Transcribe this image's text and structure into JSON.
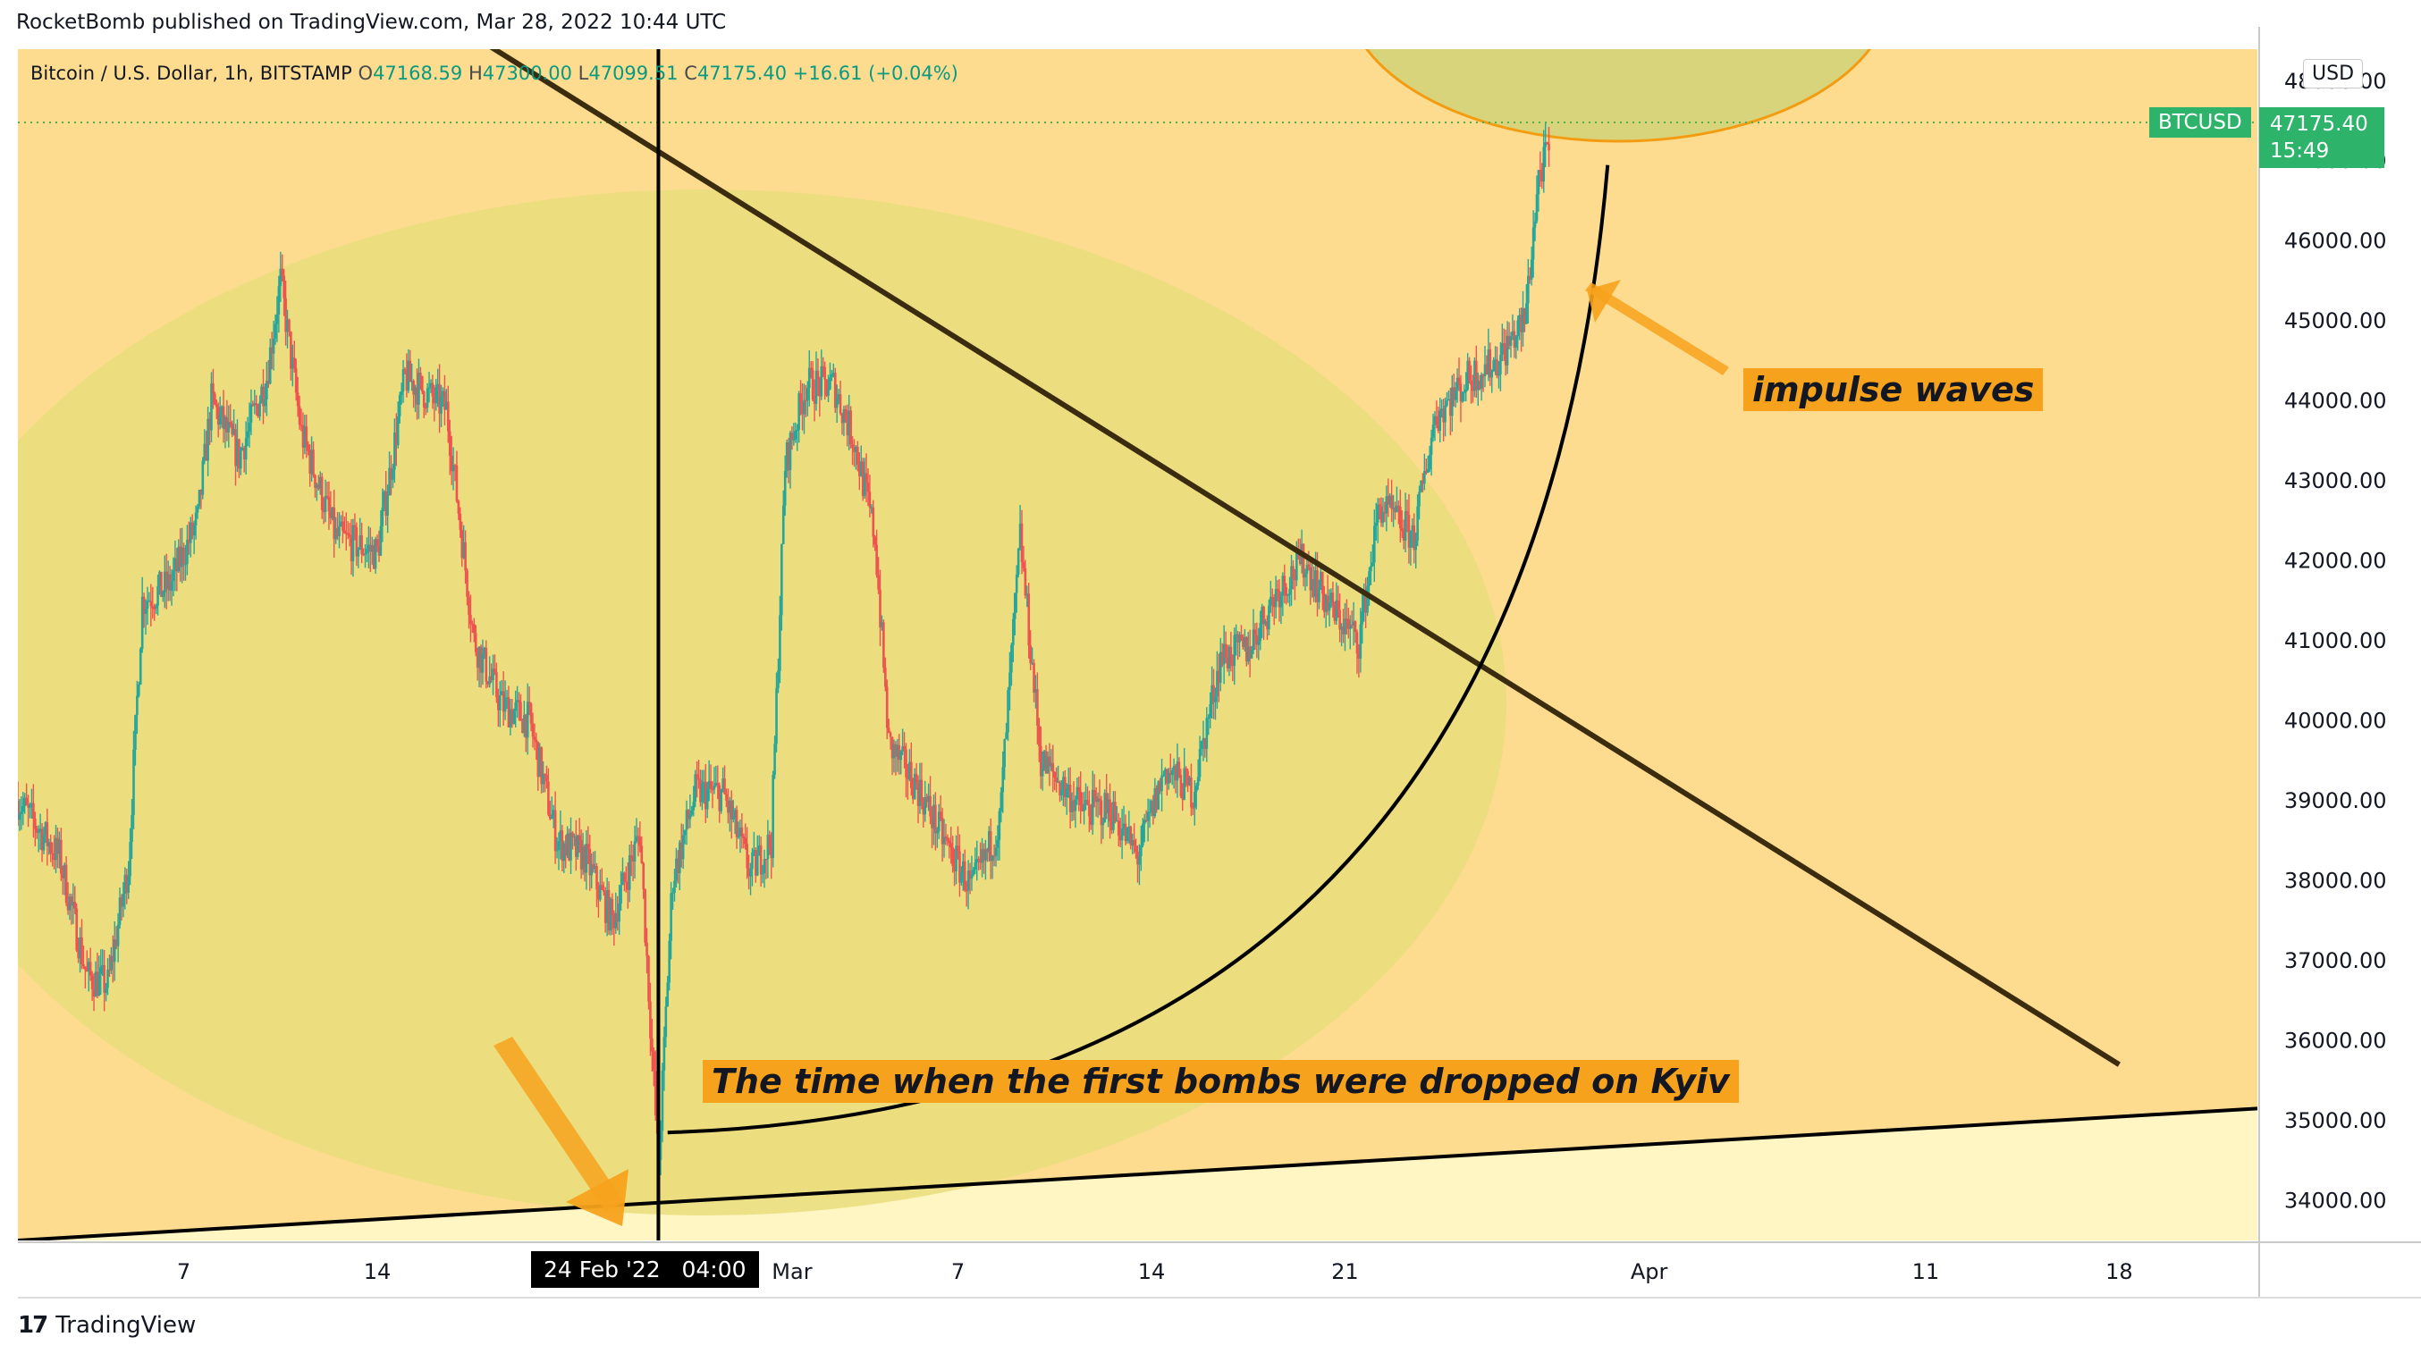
{
  "header": {
    "publisher": "RocketBomb published on TradingView.com, Mar 28, 2022 10:44 UTC"
  },
  "symbol": {
    "name": "Bitcoin / U.S. Dollar, 1h, BITSTAMP",
    "o_label": "O",
    "o": "47168.59",
    "h_label": "H",
    "h": "47300.00",
    "l_label": "L",
    "l": "47099.51",
    "c_label": "C",
    "c": "47175.40",
    "change": "+16.61 (+0.04%)"
  },
  "price_scale": {
    "currency": "USD",
    "ticker": "BTCUSD",
    "last_price": "47175.40",
    "countdown": "15:49"
  },
  "crosshair": {
    "date": "24 Feb '22",
    "time": "04:00"
  },
  "annotations": {
    "impulse": "impulse waves",
    "bombs": "The time when the first bombs were dropped on Kyiv"
  },
  "footer": {
    "brand": "TradingView"
  },
  "colors": {
    "up": "#26a69a",
    "down": "#ef5350",
    "background": "#fddc90",
    "highlight_ellipse": "#e9dd7c",
    "annotation_bg": "#f7a21c",
    "support_zone": "#fff6c4",
    "price_tag": "#2eb36a"
  },
  "chart_data": {
    "type": "candlestick",
    "symbol": "BTCUSD",
    "interval": "1h",
    "y_axis": {
      "min": 33500,
      "max": 48400,
      "ticks": [
        34000,
        35000,
        36000,
        37000,
        38000,
        39000,
        40000,
        41000,
        42000,
        43000,
        44000,
        45000,
        46000,
        47000,
        48000
      ],
      "tick_labels": [
        "34000.00",
        "35000.00",
        "36000.00",
        "37000.00",
        "38000.00",
        "39000.00",
        "40000.00",
        "41000.00",
        "42000.00",
        "43000.00",
        "44000.00",
        "45000.00",
        "46000.00",
        "47000.00",
        "48000.00"
      ]
    },
    "x_axis": {
      "start": "2022-02-01",
      "end": "2022-04-23",
      "ticks": [
        {
          "date": "2022-02-07",
          "label": "7"
        },
        {
          "date": "2022-02-14",
          "label": "14"
        },
        {
          "date": "2022-03-01",
          "label": "Mar"
        },
        {
          "date": "2022-03-07",
          "label": "7"
        },
        {
          "date": "2022-03-14",
          "label": "14"
        },
        {
          "date": "2022-03-21",
          "label": "21"
        },
        {
          "date": "2022-04-01",
          "label": "Apr"
        },
        {
          "date": "2022-04-11",
          "label": "11"
        },
        {
          "date": "2022-04-18",
          "label": "18"
        }
      ]
    },
    "price_path": [
      {
        "date": "2022-02-01 00:00",
        "price": 39000
      },
      {
        "date": "2022-02-02 12:00",
        "price": 38300
      },
      {
        "date": "2022-02-03 12:00",
        "price": 36800
      },
      {
        "date": "2022-02-04 06:00",
        "price": 36700
      },
      {
        "date": "2022-02-05 00:00",
        "price": 38200
      },
      {
        "date": "2022-02-05 12:00",
        "price": 41500
      },
      {
        "date": "2022-02-06 12:00",
        "price": 41700
      },
      {
        "date": "2022-02-07 12:00",
        "price": 42500
      },
      {
        "date": "2022-02-08 00:00",
        "price": 44000
      },
      {
        "date": "2022-02-09 00:00",
        "price": 43300
      },
      {
        "date": "2022-02-10 00:00",
        "price": 44300
      },
      {
        "date": "2022-02-10 12:00",
        "price": 45500
      },
      {
        "date": "2022-02-11 06:00",
        "price": 43600
      },
      {
        "date": "2022-02-12 12:00",
        "price": 42300
      },
      {
        "date": "2022-02-14 00:00",
        "price": 42100
      },
      {
        "date": "2022-02-15 00:00",
        "price": 44300
      },
      {
        "date": "2022-02-16 12:00",
        "price": 43900
      },
      {
        "date": "2022-02-17 12:00",
        "price": 41000
      },
      {
        "date": "2022-02-18 12:00",
        "price": 40200
      },
      {
        "date": "2022-02-19 12:00",
        "price": 40000
      },
      {
        "date": "2022-02-20 12:00",
        "price": 38500
      },
      {
        "date": "2022-02-21 12:00",
        "price": 38300
      },
      {
        "date": "2022-02-22 12:00",
        "price": 37500
      },
      {
        "date": "2022-02-23 12:00",
        "price": 38600
      },
      {
        "date": "2022-02-24 04:00",
        "price": 34400
      },
      {
        "date": "2022-02-24 16:00",
        "price": 38000
      },
      {
        "date": "2022-02-25 12:00",
        "price": 39100
      },
      {
        "date": "2022-02-26 12:00",
        "price": 39100
      },
      {
        "date": "2022-02-27 12:00",
        "price": 38100
      },
      {
        "date": "2022-02-28 06:00",
        "price": 38500
      },
      {
        "date": "2022-02-28 18:00",
        "price": 43200
      },
      {
        "date": "2022-03-01 12:00",
        "price": 44200
      },
      {
        "date": "2022-03-02 12:00",
        "price": 44200
      },
      {
        "date": "2022-03-03 06:00",
        "price": 43500
      },
      {
        "date": "2022-03-04 00:00",
        "price": 42300
      },
      {
        "date": "2022-03-04 12:00",
        "price": 39700
      },
      {
        "date": "2022-03-05 12:00",
        "price": 39200
      },
      {
        "date": "2022-03-06 12:00",
        "price": 38500
      },
      {
        "date": "2022-03-07 12:00",
        "price": 37900
      },
      {
        "date": "2022-03-08 12:00",
        "price": 38700
      },
      {
        "date": "2022-03-09 06:00",
        "price": 42300
      },
      {
        "date": "2022-03-10 00:00",
        "price": 39500
      },
      {
        "date": "2022-03-11 12:00",
        "price": 38900
      },
      {
        "date": "2022-03-12 12:00",
        "price": 38900
      },
      {
        "date": "2022-03-13 12:00",
        "price": 38300
      },
      {
        "date": "2022-03-14 12:00",
        "price": 39400
      },
      {
        "date": "2022-03-15 12:00",
        "price": 39100
      },
      {
        "date": "2022-03-16 12:00",
        "price": 40800
      },
      {
        "date": "2022-03-17 12:00",
        "price": 40900
      },
      {
        "date": "2022-03-18 12:00",
        "price": 41600
      },
      {
        "date": "2022-03-19 12:00",
        "price": 42000
      },
      {
        "date": "2022-03-20 12:00",
        "price": 41400
      },
      {
        "date": "2022-03-21 12:00",
        "price": 41000
      },
      {
        "date": "2022-03-22 06:00",
        "price": 42700
      },
      {
        "date": "2022-03-23 12:00",
        "price": 42300
      },
      {
        "date": "2022-03-24 06:00",
        "price": 43800
      },
      {
        "date": "2022-03-25 12:00",
        "price": 44300
      },
      {
        "date": "2022-03-26 12:00",
        "price": 44500
      },
      {
        "date": "2022-03-27 12:00",
        "price": 45000
      },
      {
        "date": "2022-03-28 00:00",
        "price": 46800
      },
      {
        "date": "2022-03-28 10:00",
        "price": 47175
      }
    ],
    "drawings": {
      "descending_line": {
        "from": {
          "date": "2022-02-15",
          "price": 49100
        },
        "to": {
          "date": "2022-04-18",
          "price": 35700
        }
      },
      "support_line": {
        "from": {
          "date": "2022-02-01",
          "price": 33500
        },
        "to": {
          "date": "2022-04-23",
          "price": 35150
        }
      },
      "event_line_date": "2022-02-24 04:00",
      "impulse_arc": {
        "from": {
          "date": "2022-02-24 12:00",
          "price": 34850
        },
        "to": {
          "date": "2022-03-30 12:00",
          "price": 46950
        }
      }
    }
  }
}
